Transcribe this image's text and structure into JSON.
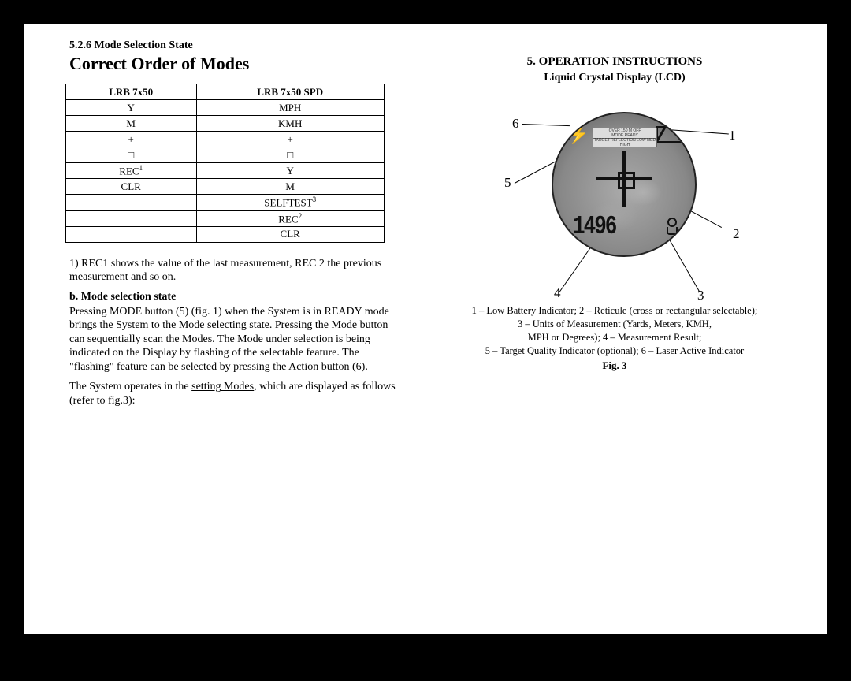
{
  "left": {
    "section_num": "5.2.6 Mode Selection State",
    "title": "Correct Order of Modes",
    "table": {
      "headers": [
        "LRB 7x50",
        "LRB 7x50 SPD"
      ],
      "rows": [
        [
          "Y",
          "MPH"
        ],
        [
          "M",
          "KMH"
        ],
        [
          "+",
          "+"
        ],
        [
          "□",
          "□"
        ],
        [
          "REC¹",
          "Y"
        ],
        [
          "CLR",
          "M"
        ],
        [
          "",
          "SELFTEST³"
        ],
        [
          "",
          "REC²"
        ],
        [
          "",
          "CLR"
        ]
      ]
    },
    "note1": "1) REC1 shows the value of the last measurement, REC 2 the previous measurement and so on.",
    "sub_b": "b. Mode selection state",
    "para1a": "Pressing MODE button (5) (fig. 1) when the System is in READY mode brings the System to the Mode selecting state. Pressing the Mode button can sequentially scan the Modes. The Mode under selection is being indicated on the Display by flashing of the selectable feature. The \"flashing\" feature can be selected by pressing the Action button (6).",
    "para2a": "The System operates in the ",
    "para2u": "setting Modes",
    "para2b": ", which are displayed as follows (refer to fig.3):"
  },
  "right": {
    "op_title": "5. OPERATION INSTRUCTIONS",
    "lcd_title": "Liquid Crystal Display (LCD)",
    "callouts": {
      "n1": "1",
      "n2": "2",
      "n3": "3",
      "n4": "4",
      "n5": "5",
      "n6": "6"
    },
    "scope": {
      "status_line1": "OVER 150 M OFF",
      "status_line2": "MODE    READY",
      "status_line3": "TARGET REFLECTION  LOW  MED  HIGH",
      "digits": "1496"
    },
    "legend1": "1 – Low Battery Indicator; 2 – Reticule (cross or rectangular selectable);",
    "legend2": "3 – Units of Measurement (Yards, Meters, KMH,",
    "legend3": "MPH or Degrees); 4 – Measurement Result;",
    "legend4": "5 – Target Quality Indicator (optional); 6 – Laser Active Indicator",
    "fig": "Fig. 3"
  }
}
